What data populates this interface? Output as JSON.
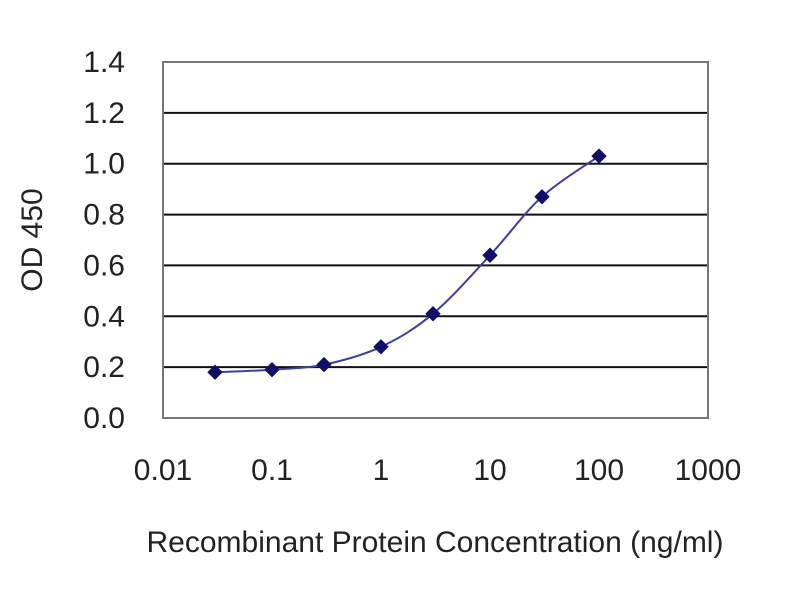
{
  "chart_data": {
    "type": "line",
    "title": "",
    "xlabel": "Recombinant Protein Concentration (ng/ml)",
    "ylabel": "OD 450",
    "x_scale": "log",
    "xlim": [
      0.01,
      1000
    ],
    "ylim": [
      0.0,
      1.4
    ],
    "x_ticks": [
      "0.01",
      "0.1",
      "1",
      "10",
      "100",
      "1000"
    ],
    "y_ticks": [
      "0.0",
      "0.2",
      "0.4",
      "0.6",
      "0.8",
      "1.0",
      "1.2",
      "1.4"
    ],
    "grid": "horizontal",
    "legend": "none",
    "series": [
      {
        "x": [
          0.03,
          0.1,
          0.3,
          1,
          3,
          10,
          30,
          100
        ],
        "y": [
          0.18,
          0.19,
          0.21,
          0.28,
          0.41,
          0.64,
          0.87,
          1.03
        ]
      }
    ],
    "colors": {
      "line": "#3f3f9c",
      "marker": "#10106b",
      "grid": "#111111",
      "frame": "#777777"
    }
  }
}
